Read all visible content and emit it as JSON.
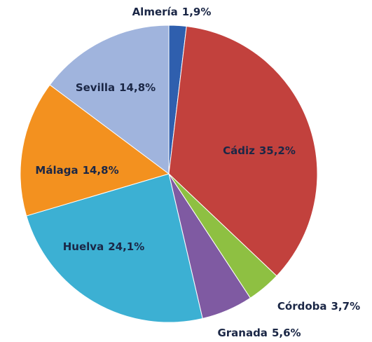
{
  "chart_data": {
    "type": "pie",
    "categories": [
      "Almería",
      "Cádiz",
      "Córdoba",
      "Granada",
      "Huelva",
      "Málaga",
      "Sevilla"
    ],
    "values": [
      1.9,
      35.2,
      3.7,
      5.6,
      24.1,
      14.8,
      14.8
    ],
    "value_labels": [
      "1,9%",
      "35,2%",
      "3,7%",
      "5,6%",
      "24,1%",
      "14,8%",
      "14,8%"
    ],
    "colors": [
      "#2f5fae",
      "#c2413d",
      "#8ec042",
      "#7f5aa2",
      "#3cb0d3",
      "#f3911f",
      "#a0b4dd"
    ]
  }
}
